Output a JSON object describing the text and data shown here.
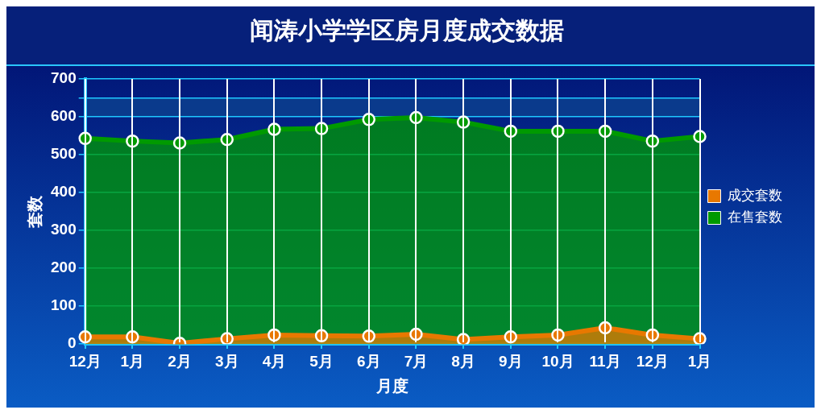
{
  "chart_data": {
    "type": "area",
    "title": "闻涛小学学区房月度成交数据",
    "xlabel": "月度",
    "ylabel": "套数",
    "categories": [
      "12月",
      "1月",
      "2月",
      "3月",
      "4月",
      "5月",
      "6月",
      "7月",
      "8月",
      "9月",
      "10月",
      "11月",
      "12月",
      "1月"
    ],
    "series": [
      {
        "name": "成交套数",
        "color": "#e87800",
        "values": [
          19,
          19,
          2,
          14,
          24,
          22,
          21,
          26,
          12,
          19,
          24,
          43,
          24,
          14
        ]
      },
      {
        "name": "在售套数",
        "color": "#009a00",
        "values": [
          543,
          536,
          531,
          540,
          567,
          569,
          593,
          598,
          586,
          562,
          562,
          562,
          536,
          548
        ]
      }
    ],
    "ylim": [
      0,
      700
    ],
    "yticks": [
      0,
      100,
      200,
      300,
      400,
      500,
      600,
      {
        "value": 650,
        "label": null
      },
      700
    ],
    "bands": [
      {
        "axis": "y",
        "from": 600,
        "to": 650,
        "color": "#0a3a8c"
      }
    ],
    "grid": true,
    "legend": "right",
    "marker": "circle"
  }
}
